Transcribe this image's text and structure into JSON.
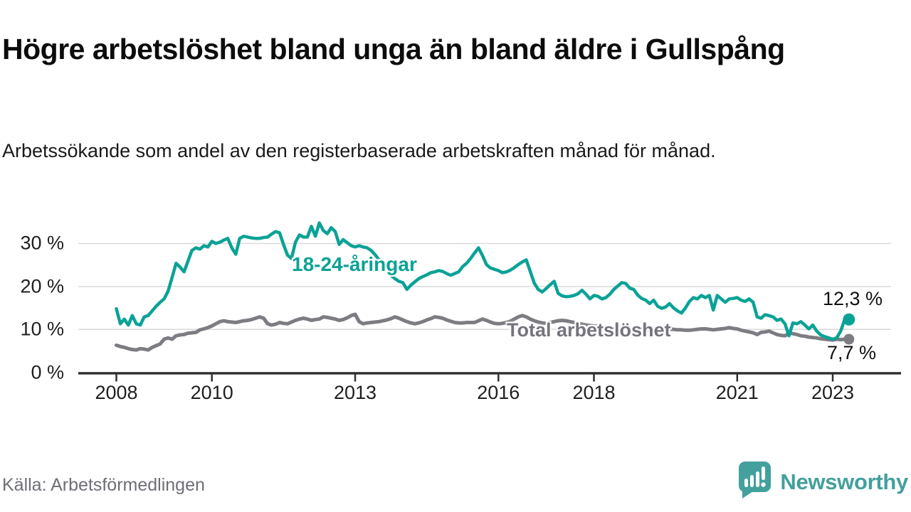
{
  "header": {
    "title": "Högre arbetslöshet bland unga än bland äldre i Gullspång",
    "subtitle": "Arbetssökande som andel av den registerbaserade arbetskraften månad för månad."
  },
  "footer": {
    "source": "Källa: Arbetsförmedlingen",
    "brand": "Newsworthy"
  },
  "colors": {
    "youth_line": "#0aa296",
    "total_line": "#7c7c82",
    "axis": "#2f2f2f",
    "gridline": "#dcdcdc",
    "brand_teal": "#43a09d"
  },
  "chart_data": {
    "type": "line",
    "title": "Högre arbetslöshet bland unga än bland äldre i Gullspång",
    "xlabel": "",
    "ylabel": "Arbetssökande som andel av den registerbaserade arbetskraften",
    "x_start_year": 2008,
    "x_start_month": 1,
    "frequency": "monthly",
    "x_tick_years": [
      2008,
      2010,
      2013,
      2016,
      2018,
      2021,
      2023
    ],
    "y_ticks": [
      0,
      10,
      20,
      30
    ],
    "y_tick_suffix": " %",
    "ylim": [
      0,
      36
    ],
    "grid": "horizontal",
    "legend_position": "inline-labels",
    "series": [
      {
        "name": "Total arbetslöshet",
        "color": "#7c7c82",
        "end_label": "7,7 %",
        "end_value": 7.7,
        "values": [
          6.3,
          6.0,
          5.8,
          5.5,
          5.3,
          5.2,
          5.5,
          5.4,
          5.2,
          5.8,
          6.2,
          6.6,
          7.7,
          8.0,
          7.7,
          8.5,
          8.7,
          8.8,
          9.1,
          9.2,
          9.3,
          9.9,
          10.1,
          10.4,
          10.8,
          11.3,
          11.8,
          12.0,
          11.8,
          11.7,
          11.6,
          11.8,
          12.0,
          12.1,
          12.3,
          12.6,
          12.9,
          12.6,
          11.3,
          11.0,
          11.2,
          11.6,
          11.4,
          11.3,
          11.7,
          12.1,
          12.4,
          12.6,
          12.4,
          12.1,
          12.3,
          12.4,
          12.9,
          12.8,
          12.6,
          12.4,
          12.1,
          12.3,
          12.7,
          13.2,
          13.5,
          11.8,
          11.3,
          11.5,
          11.6,
          11.7,
          11.8,
          12.0,
          12.2,
          12.5,
          12.9,
          12.6,
          12.2,
          11.8,
          11.5,
          11.3,
          11.5,
          11.8,
          12.2,
          12.5,
          12.9,
          12.8,
          12.6,
          12.2,
          11.9,
          11.6,
          11.5,
          11.5,
          11.6,
          11.6,
          11.6,
          12.0,
          12.4,
          12.1,
          11.7,
          11.4,
          11.3,
          11.4,
          11.6,
          11.9,
          12.4,
          12.9,
          13.2,
          12.9,
          12.4,
          12.0,
          11.7,
          11.5,
          11.4,
          11.6,
          11.8,
          12.0,
          12.1,
          12.0,
          11.8,
          11.6,
          11.4,
          11.2,
          11.0,
          10.9,
          10.8,
          10.7,
          10.6,
          10.5,
          10.4,
          10.3,
          10.3,
          10.4,
          10.4,
          10.3,
          10.2,
          10.1,
          10.0,
          9.9,
          9.9,
          9.8,
          9.8,
          9.9,
          9.9,
          10.0,
          10.0,
          9.9,
          9.9,
          9.8,
          9.8,
          9.9,
          10.0,
          10.1,
          10.1,
          10.0,
          9.9,
          10.0,
          10.1,
          10.2,
          10.4,
          10.2,
          10.1,
          9.8,
          9.6,
          9.4,
          9.2,
          8.8,
          9.3,
          9.4,
          9.6,
          9.2,
          8.8,
          8.6,
          8.5,
          9.1,
          9.0,
          8.8,
          8.5,
          8.4,
          8.2,
          8.1,
          8.0,
          7.8,
          7.7,
          7.6,
          7.5,
          7.7,
          7.6,
          7.7
        ]
      },
      {
        "name": "18-24-åringar",
        "color": "#0aa296",
        "end_label": "12,3 %",
        "end_value": 12.3,
        "values": [
          14.8,
          11.3,
          12.4,
          11.0,
          13.2,
          11.3,
          11.0,
          12.9,
          13.2,
          14.3,
          15.4,
          16.3,
          17.1,
          18.9,
          22.1,
          25.4,
          24.5,
          23.4,
          25.9,
          28.4,
          29.0,
          28.7,
          29.5,
          29.2,
          30.5,
          30.0,
          30.3,
          30.8,
          31.2,
          29.0,
          27.5,
          31.2,
          31.7,
          31.5,
          31.3,
          31.2,
          31.2,
          31.4,
          31.5,
          32.2,
          32.8,
          32.5,
          29.8,
          27.3,
          26.5,
          30.3,
          32.0,
          31.5,
          31.5,
          34.0,
          31.7,
          34.8,
          33.0,
          32.3,
          33.7,
          32.8,
          29.8,
          30.9,
          30.2,
          29.5,
          29.2,
          29.5,
          29.2,
          29.0,
          28.4,
          27.4,
          26.2,
          25.0,
          23.8,
          22.6,
          21.8,
          21.2,
          20.9,
          19.3,
          20.3,
          21.1,
          21.8,
          22.3,
          22.7,
          23.2,
          23.4,
          23.7,
          23.5,
          23.0,
          22.6,
          23.0,
          23.4,
          24.6,
          25.4,
          26.5,
          27.8,
          29.0,
          27.2,
          25.1,
          24.3,
          24.0,
          23.7,
          23.2,
          23.4,
          23.8,
          24.4,
          25.1,
          25.7,
          26.2,
          23.5,
          20.8,
          19.3,
          18.7,
          19.5,
          20.4,
          21.2,
          18.4,
          17.8,
          17.6,
          17.7,
          17.9,
          18.3,
          19.1,
          18.2,
          17.1,
          17.9,
          17.7,
          17.1,
          17.4,
          18.2,
          19.3,
          20.1,
          20.9,
          20.7,
          19.6,
          19.3,
          18.0,
          17.2,
          16.8,
          16.0,
          16.8,
          15.4,
          14.9,
          15.2,
          16.0,
          15.0,
          14.3,
          13.8,
          15.0,
          16.5,
          17.4,
          17.1,
          17.9,
          17.4,
          17.9,
          14.5,
          17.9,
          17.1,
          16.3,
          17.1,
          17.2,
          17.4,
          16.8,
          16.5,
          17.1,
          16.3,
          12.9,
          12.6,
          13.4,
          13.2,
          12.9,
          12.1,
          12.4,
          11.3,
          8.5,
          11.5,
          11.3,
          11.8,
          11.0,
          10.1,
          11.0,
          9.6,
          8.7,
          8.3,
          8.0,
          7.7,
          8.0,
          9.6,
          12.3
        ]
      }
    ]
  }
}
